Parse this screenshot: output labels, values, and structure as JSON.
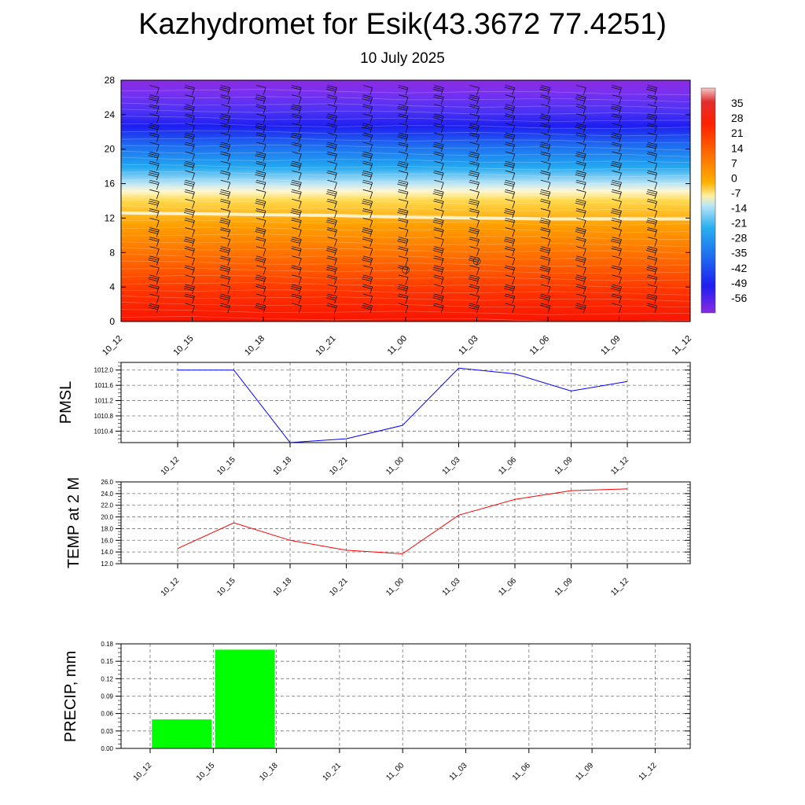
{
  "header": {
    "title": "Kazhydromet for Esik(43.3672 77.4251)",
    "date": "10 July 2025"
  },
  "chart_data": [
    {
      "type": "heatmap",
      "x_labels": [
        "10_12",
        "10_15",
        "10_18",
        "10_21",
        "11_00",
        "11_03",
        "11_06",
        "11_09",
        "11_12"
      ],
      "yticks": [
        0,
        4,
        8,
        12,
        16,
        20,
        24,
        28
      ],
      "ylim": [
        0,
        28
      ],
      "colorbar_labels": [
        "35",
        "28",
        "21",
        "14",
        "7",
        "0",
        "-7",
        "-14",
        "-21",
        "-28",
        "-35",
        "-42",
        "-49",
        "-56"
      ],
      "colorbar_range": [
        -63,
        42
      ],
      "freezing_level": [
        12.6,
        12.5,
        12.4,
        12.3,
        12.1,
        12.0,
        11.9,
        11.9,
        11.9
      ],
      "calm_markers": [
        {
          "x": "11_00",
          "y": 6
        },
        {
          "x": "11_03",
          "y": 7
        }
      ],
      "wind_barbs": "shown"
    },
    {
      "type": "line",
      "ylabel": "PMSL",
      "x": [
        "10_12",
        "10_15",
        "10_18",
        "10_21",
        "11_00",
        "11_03",
        "11_06",
        "11_09",
        "11_12"
      ],
      "values": [
        1012.0,
        1012.0,
        1010.1,
        1010.2,
        1010.55,
        1012.05,
        1011.9,
        1011.45,
        1011.7
      ],
      "yticks": [
        "1010.4",
        "1010.8",
        "1011.2",
        "1011.6",
        "1012.0"
      ],
      "ylim": [
        1010.1,
        1012.2
      ],
      "color": "#0000ff"
    },
    {
      "type": "line",
      "ylabel": "TEMP at 2 M",
      "x": [
        "10_12",
        "10_15",
        "10_18",
        "10_21",
        "11_00",
        "11_03",
        "11_06",
        "11_09",
        "11_12"
      ],
      "values": [
        14.6,
        19.0,
        16.0,
        14.3,
        13.7,
        20.3,
        23.0,
        24.5,
        24.8
      ],
      "yticks": [
        "12.0",
        "14.0",
        "16.0",
        "18.0",
        "20.0",
        "22.0",
        "24.0",
        "26.0"
      ],
      "ylim": [
        12,
        26
      ],
      "color": "#ff0000"
    },
    {
      "type": "bar",
      "ylabel": "PRECIP, mm",
      "categories": [
        "10_12",
        "10_15",
        "10_18",
        "10_21",
        "11_00",
        "11_03",
        "11_06",
        "11_09",
        "11_12"
      ],
      "values": [
        0,
        0.05,
        0.17,
        0,
        0,
        0,
        0,
        0,
        0
      ],
      "yticks": [
        "0.00",
        "0.03",
        "0.06",
        "0.09",
        "0.12",
        "0.15",
        "0.18"
      ],
      "ylim": [
        0,
        0.18
      ],
      "color": "#00ff00"
    }
  ]
}
